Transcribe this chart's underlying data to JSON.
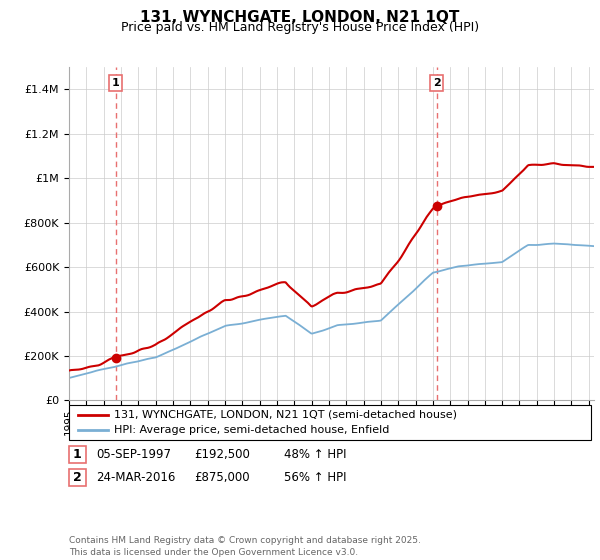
{
  "title": "131, WYNCHGATE, LONDON, N21 1QT",
  "subtitle": "Price paid vs. HM Land Registry's House Price Index (HPI)",
  "legend_line1": "131, WYNCHGATE, LONDON, N21 1QT (semi-detached house)",
  "legend_line2": "HPI: Average price, semi-detached house, Enfield",
  "annotation1_label": "1",
  "annotation1_date": "05-SEP-1997",
  "annotation1_price": "£192,500",
  "annotation1_hpi": "48% ↑ HPI",
  "annotation2_label": "2",
  "annotation2_date": "24-MAR-2016",
  "annotation2_price": "£875,000",
  "annotation2_hpi": "56% ↑ HPI",
  "footer": "Contains HM Land Registry data © Crown copyright and database right 2025.\nThis data is licensed under the Open Government Licence v3.0.",
  "red_color": "#cc0000",
  "blue_color": "#7aafd4",
  "dashed_color": "#e87070",
  "ylim_max": 1500000,
  "yticks": [
    0,
    200000,
    400000,
    600000,
    800000,
    1000000,
    1200000,
    1400000
  ],
  "sale1_x": 1997.7,
  "sale1_y": 192500,
  "sale2_x": 2016.23,
  "sale2_y": 875000,
  "xmin": 1995,
  "xmax": 2025.3
}
